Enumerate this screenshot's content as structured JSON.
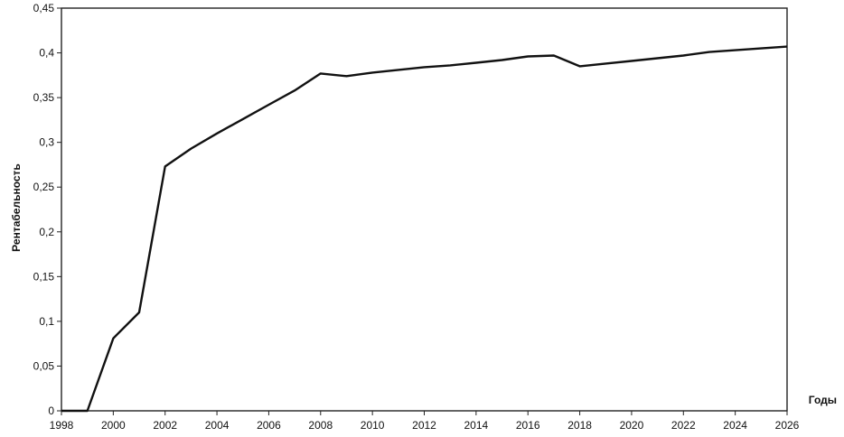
{
  "chart_data": {
    "type": "line",
    "title": "",
    "xlabel": "Годы",
    "ylabel": "Рентабельность",
    "xlim": [
      1998,
      2026
    ],
    "ylim": [
      0,
      0.45
    ],
    "grid": false,
    "legend": "none",
    "line_color": "#111111",
    "x_ticks": [
      "1998",
      "2000",
      "2002",
      "2004",
      "2006",
      "2008",
      "2010",
      "2012",
      "2014",
      "2016",
      "2018",
      "2020",
      "2022",
      "2024",
      "2026"
    ],
    "y_ticks": [
      "0",
      "0,05",
      "0,1",
      "0,15",
      "0,2",
      "0,25",
      "0,3",
      "0,35",
      "0,4",
      "0,45"
    ],
    "series": [
      {
        "x": [
          1998,
          1999,
          2000,
          2001,
          2002,
          2003,
          2004,
          2005,
          2006,
          2007,
          2008,
          2009,
          2010,
          2011,
          2012,
          2013,
          2014,
          2015,
          2016,
          2017,
          2018,
          2019,
          2020,
          2021,
          2022,
          2023,
          2024,
          2025,
          2026
        ],
        "values": [
          0,
          0,
          0.081,
          0.11,
          0.273,
          0.293,
          0.31,
          0.326,
          0.342,
          0.358,
          0.377,
          0.374,
          0.378,
          0.381,
          0.384,
          0.386,
          0.389,
          0.392,
          0.396,
          0.397,
          0.385,
          0.388,
          0.391,
          0.394,
          0.397,
          0.401,
          0.403,
          0.405,
          0.407
        ]
      }
    ]
  }
}
